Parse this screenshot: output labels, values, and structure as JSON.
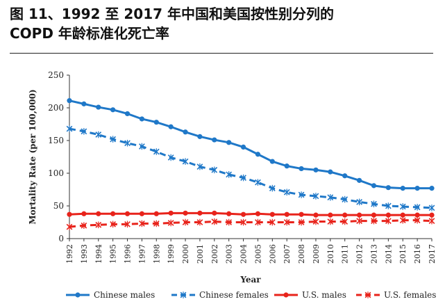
{
  "figure": {
    "title_line1": "图 11、1992 至 2017 年中国和美国按性别分列的",
    "title_line2": "COPD 年龄标准化死亡率"
  },
  "chart_data": {
    "type": "line",
    "xlabel": "Year",
    "ylabel": "Mortality Rate (per 100,000)",
    "ylim": [
      0,
      250
    ],
    "yticks": [
      0,
      50,
      100,
      150,
      200,
      250
    ],
    "grid": false,
    "legend_position": "bottom",
    "categories": [
      "1992",
      "1993",
      "1994",
      "1995",
      "1996",
      "1997",
      "1998",
      "1999",
      "2000",
      "2001",
      "2002",
      "2003",
      "2004",
      "2005",
      "2006",
      "2007",
      "2008",
      "2009",
      "2010",
      "2011",
      "2012",
      "2013",
      "2014",
      "2015",
      "2016",
      "2017"
    ],
    "series": [
      {
        "name": "Chinese males",
        "color": "#1f78c8",
        "line_style": "solid",
        "marker": "circle",
        "values": [
          211,
          206,
          201,
          197,
          191,
          183,
          178,
          171,
          163,
          156,
          151,
          147,
          140,
          129,
          118,
          111,
          107,
          105,
          102,
          96,
          89,
          81,
          78,
          77,
          77,
          77
        ]
      },
      {
        "name": "Chinese females",
        "color": "#1f78c8",
        "line_style": "dashed",
        "marker": "x",
        "values": [
          168,
          164,
          159,
          152,
          146,
          141,
          133,
          124,
          118,
          110,
          105,
          98,
          93,
          86,
          77,
          71,
          67,
          65,
          63,
          60,
          56,
          53,
          50,
          49,
          48,
          47
        ]
      },
      {
        "name": "U.S. males",
        "color": "#e8231b",
        "line_style": "solid",
        "marker": "circle",
        "values": [
          37,
          38,
          38,
          38,
          38,
          38,
          38,
          39,
          39,
          39,
          39,
          38,
          37,
          38,
          37,
          37,
          37,
          36,
          36,
          36,
          36,
          36,
          36,
          36,
          36,
          36
        ]
      },
      {
        "name": "U.S. females",
        "color": "#e8231b",
        "line_style": "dashed",
        "marker": "x",
        "values": [
          18,
          20,
          21,
          22,
          22,
          23,
          23,
          24,
          25,
          25,
          26,
          25,
          25,
          25,
          25,
          25,
          25,
          26,
          26,
          26,
          27,
          27,
          27,
          28,
          28,
          27
        ]
      }
    ]
  }
}
